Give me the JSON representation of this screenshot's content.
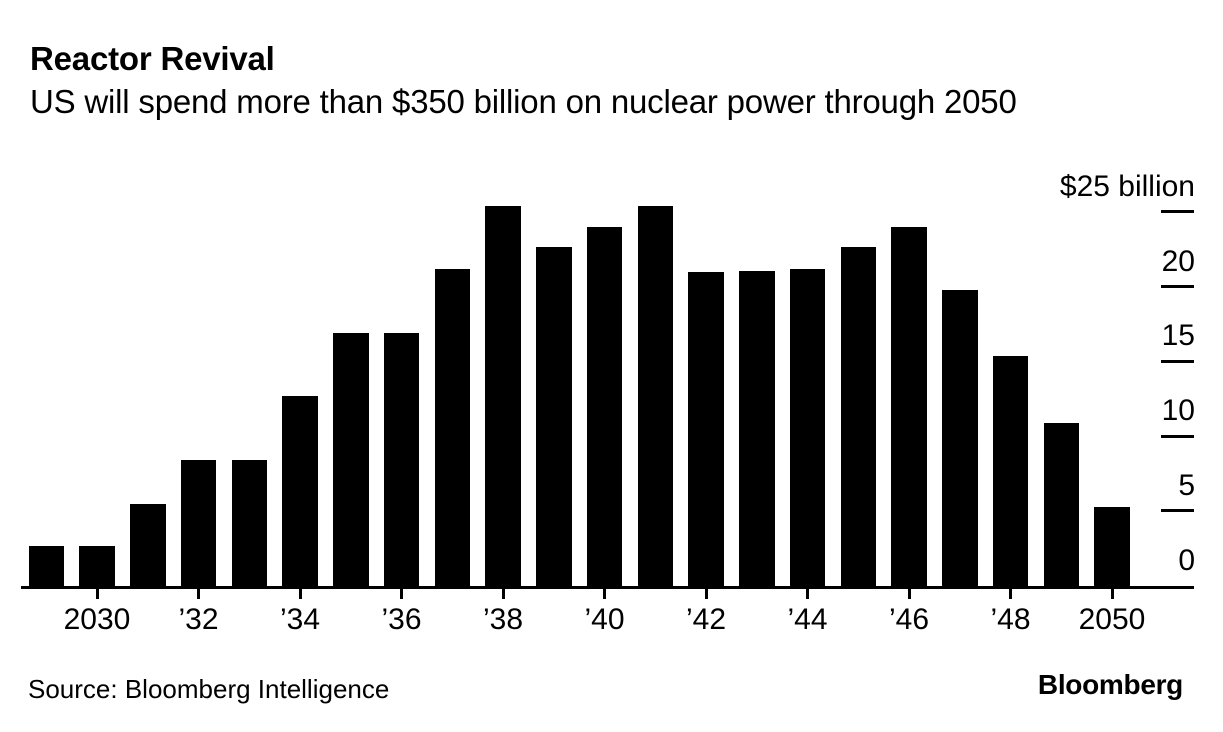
{
  "header": {
    "title": "Reactor Revival",
    "subtitle": "US will spend more than $350 billion on nuclear power through 2050"
  },
  "footer": {
    "source": "Source: Bloomberg Intelligence",
    "logo": "Bloomberg"
  },
  "chart_data": {
    "type": "bar",
    "title": "Reactor Revival",
    "subtitle": "US will spend more than $350 billion on nuclear power through 2050",
    "x": [
      2029,
      2030,
      2031,
      2032,
      2033,
      2034,
      2035,
      2036,
      2037,
      2038,
      2039,
      2040,
      2041,
      2042,
      2043,
      2044,
      2045,
      2046,
      2047,
      2048,
      2049,
      2050
    ],
    "values": [
      2.7,
      2.7,
      5.5,
      8.4,
      8.4,
      12.7,
      16.9,
      16.9,
      21.2,
      25.4,
      22.7,
      24.0,
      25.4,
      21.0,
      21.1,
      21.2,
      22.7,
      24.0,
      19.8,
      15.4,
      10.9,
      5.3
    ],
    "values_unit": "$ billion",
    "x_ticks": [
      {
        "year": 2030,
        "label": "2030"
      },
      {
        "year": 2032,
        "label": "’32"
      },
      {
        "year": 2034,
        "label": "’34"
      },
      {
        "year": 2036,
        "label": "’36"
      },
      {
        "year": 2038,
        "label": "’38"
      },
      {
        "year": 2040,
        "label": "’40"
      },
      {
        "year": 2042,
        "label": "’42"
      },
      {
        "year": 2044,
        "label": "’44"
      },
      {
        "year": 2046,
        "label": "’46"
      },
      {
        "year": 2048,
        "label": "’48"
      },
      {
        "year": 2050,
        "label": "2050"
      }
    ],
    "y_ticks": [
      {
        "value": 25,
        "label": "$25 billion",
        "tick_mark": true
      },
      {
        "value": 20,
        "label": "20",
        "tick_mark": true
      },
      {
        "value": 15,
        "label": "15",
        "tick_mark": true
      },
      {
        "value": 10,
        "label": "10",
        "tick_mark": true
      },
      {
        "value": 5,
        "label": "5",
        "tick_mark": true
      },
      {
        "value": 0,
        "label": "0",
        "tick_mark": false
      }
    ],
    "ylim": [
      0,
      26
    ],
    "grid": false,
    "legend": "none",
    "axis_label_side": "right",
    "bar_color": "#000000",
    "background_color": "#ffffff"
  }
}
